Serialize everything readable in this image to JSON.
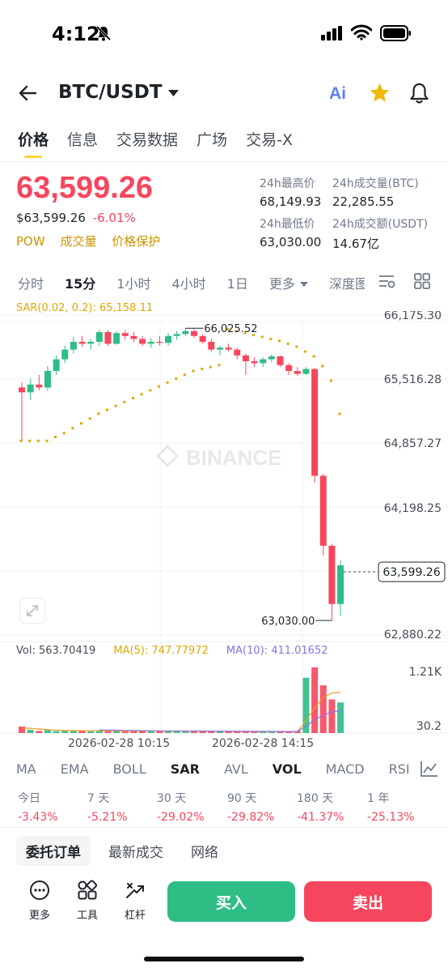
{
  "status_bar": {
    "time": "4:12"
  },
  "header": {
    "pair": "BTC/USDT",
    "ai_label": "Ai"
  },
  "tabs": [
    {
      "label": "价格"
    },
    {
      "label": "信息"
    },
    {
      "label": "交易数据"
    },
    {
      "label": "广场"
    },
    {
      "label": "交易-X"
    }
  ],
  "ticker": {
    "price": "63,599.26",
    "usd_price": "$63,599.26",
    "change": "-6.01%",
    "badges": [
      "POW",
      "成交量",
      "价格保护"
    ],
    "stats": [
      {
        "label": "24h最高价",
        "value": "68,149.93"
      },
      {
        "label": "24h成交量(BTC)",
        "value": "22,285.55"
      },
      {
        "label": "24h最低价",
        "value": "63,030.00"
      },
      {
        "label": "24h成交额(USDT)",
        "value": "14.67亿"
      }
    ]
  },
  "intervals": [
    "分时",
    "15分",
    "1小时",
    "4小时",
    "1日",
    "更多",
    "深度图"
  ],
  "active_interval": "15分",
  "chart": {
    "sar_legend": "SAR(0.02, 0.2): 65,158.11",
    "watermark": "BINANCE",
    "price_axis": [
      "66,175.30",
      "65,516.28",
      "64,857.27",
      "64,198.25",
      "63,599.26",
      "62,880.22"
    ],
    "high_label": "66,025.52",
    "low_label": "63,030.00",
    "volume_legend": {
      "vol": "Vol: 563.70419",
      "ma5": "MA(5): 747.77972",
      "ma10": "MA(10): 411.01652"
    },
    "volume_axis": [
      "1.21K",
      "30.2"
    ],
    "time_labels": [
      "2026-02-28 10:15",
      "2026-02-28 14:15"
    ],
    "colors": {
      "up": "#2ebd85",
      "down": "#f6465d",
      "sar": "#e0a800",
      "ma5": "#f0a020",
      "ma10": "#8a71e6"
    }
  },
  "chart_data": {
    "type": "candlestick",
    "interval": "15m",
    "ylim": [
      62880.22,
      66175.3
    ],
    "candles": [
      {
        "o": 65430,
        "h": 65480,
        "l": 64880,
        "c": 65380
      },
      {
        "o": 65380,
        "h": 65520,
        "l": 65300,
        "c": 65460
      },
      {
        "o": 65460,
        "h": 65560,
        "l": 65400,
        "c": 65430
      },
      {
        "o": 65430,
        "h": 65650,
        "l": 65400,
        "c": 65600
      },
      {
        "o": 65600,
        "h": 65760,
        "l": 65560,
        "c": 65720
      },
      {
        "o": 65720,
        "h": 65860,
        "l": 65680,
        "c": 65820
      },
      {
        "o": 65820,
        "h": 65950,
        "l": 65780,
        "c": 65900
      },
      {
        "o": 65900,
        "h": 65960,
        "l": 65850,
        "c": 65880
      },
      {
        "o": 65880,
        "h": 65930,
        "l": 65820,
        "c": 65900
      },
      {
        "o": 65900,
        "h": 66025,
        "l": 65860,
        "c": 66000
      },
      {
        "o": 66000,
        "h": 66020,
        "l": 65860,
        "c": 65880
      },
      {
        "o": 65880,
        "h": 66010,
        "l": 65870,
        "c": 65990
      },
      {
        "o": 65990,
        "h": 66020,
        "l": 65920,
        "c": 65960
      },
      {
        "o": 65960,
        "h": 66000,
        "l": 65900,
        "c": 65930
      },
      {
        "o": 65930,
        "h": 65960,
        "l": 65860,
        "c": 65880
      },
      {
        "o": 65880,
        "h": 65940,
        "l": 65840,
        "c": 65900
      },
      {
        "o": 65900,
        "h": 65960,
        "l": 65860,
        "c": 65890
      },
      {
        "o": 65890,
        "h": 65990,
        "l": 65860,
        "c": 65960
      },
      {
        "o": 65960,
        "h": 66010,
        "l": 65920,
        "c": 65980
      },
      {
        "o": 65980,
        "h": 66040,
        "l": 65960,
        "c": 66010
      },
      {
        "o": 66010,
        "h": 66030,
        "l": 65940,
        "c": 65960
      },
      {
        "o": 65960,
        "h": 65980,
        "l": 65880,
        "c": 65900
      },
      {
        "o": 65900,
        "h": 65930,
        "l": 65800,
        "c": 65820
      },
      {
        "o": 65820,
        "h": 65860,
        "l": 65760,
        "c": 65840
      },
      {
        "o": 65840,
        "h": 65880,
        "l": 65800,
        "c": 65820
      },
      {
        "o": 65820,
        "h": 65840,
        "l": 65720,
        "c": 65760
      },
      {
        "o": 65760,
        "h": 65780,
        "l": 65560,
        "c": 65700
      },
      {
        "o": 65700,
        "h": 65740,
        "l": 65640,
        "c": 65680
      },
      {
        "o": 65680,
        "h": 65740,
        "l": 65640,
        "c": 65720
      },
      {
        "o": 65720,
        "h": 65770,
        "l": 65690,
        "c": 65750
      },
      {
        "o": 65750,
        "h": 65760,
        "l": 65640,
        "c": 65660
      },
      {
        "o": 65660,
        "h": 65680,
        "l": 65560,
        "c": 65600
      },
      {
        "o": 65600,
        "h": 65640,
        "l": 65550,
        "c": 65570
      },
      {
        "o": 65570,
        "h": 65640,
        "l": 65560,
        "c": 65620
      },
      {
        "o": 65620,
        "h": 65630,
        "l": 64450,
        "c": 64520
      },
      {
        "o": 64520,
        "h": 64540,
        "l": 63700,
        "c": 63800
      },
      {
        "o": 63800,
        "h": 63820,
        "l": 63030,
        "c": 63200
      },
      {
        "o": 63200,
        "h": 63650,
        "l": 63080,
        "c": 63599.26
      }
    ],
    "sar": [
      64880,
      64880,
      64880,
      64880,
      64920,
      64960,
      65010,
      65060,
      65110,
      65160,
      65200,
      65240,
      65280,
      65320,
      65360,
      65400,
      65440,
      65480,
      65520,
      65560,
      65600,
      65620,
      65640,
      65660,
      66030,
      66010,
      65990,
      65970,
      65950,
      65930,
      65910,
      65880,
      65850,
      65800,
      65750,
      65650,
      65500,
      65158.11
    ],
    "volume": [
      120,
      60,
      40,
      55,
      35,
      50,
      45,
      40,
      30,
      45,
      35,
      40,
      30,
      38,
      42,
      35,
      40,
      32,
      36,
      30,
      28,
      40,
      35,
      30,
      28,
      26,
      32,
      30,
      28,
      25,
      30,
      28,
      35,
      1020,
      1210,
      880,
      620,
      563.70419
    ],
    "vol_ylim": [
      0,
      1210
    ],
    "ma5": [
      90,
      88,
      75,
      62,
      52,
      47,
      45,
      44,
      40,
      42,
      41,
      40,
      36,
      37,
      39,
      37,
      37,
      36,
      37,
      34,
      33,
      35,
      34,
      33,
      32,
      30,
      30,
      29,
      29,
      28,
      29,
      28,
      29,
      230,
      460,
      650,
      740,
      747.77972
    ],
    "ma10": [
      null,
      null,
      null,
      null,
      null,
      null,
      null,
      null,
      null,
      58,
      55,
      52,
      48,
      46,
      44,
      42,
      41,
      40,
      38,
      38,
      37,
      37,
      36,
      35,
      34,
      32,
      32,
      31,
      31,
      30,
      29,
      29,
      29,
      128,
      245,
      330,
      390,
      411.01652
    ]
  },
  "indicators": [
    "MA",
    "EMA",
    "BOLL",
    "SAR",
    "AVL",
    "VOL",
    "MACD",
    "RSI"
  ],
  "active_indicators": [
    "SAR",
    "VOL"
  ],
  "performance": [
    {
      "label": "今日",
      "value": "-3.43%"
    },
    {
      "label": "7 天",
      "value": "-5.21%"
    },
    {
      "label": "30 天",
      "value": "-29.02%"
    },
    {
      "label": "90 天",
      "value": "-29.82%"
    },
    {
      "label": "180 天",
      "value": "-41.37%"
    },
    {
      "label": "1 年",
      "value": "-25.13%"
    }
  ],
  "book_tabs": [
    "委托订单",
    "最新成交",
    "网络"
  ],
  "bottom": {
    "more": "更多",
    "tools": "工具",
    "leverage": "杠杆",
    "buy": "买入",
    "sell": "卖出"
  }
}
